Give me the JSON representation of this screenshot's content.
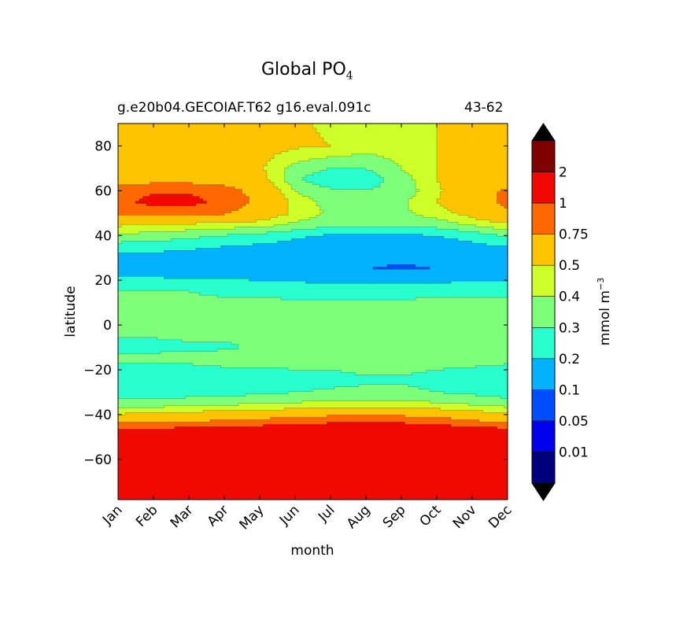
{
  "chart_data": {
    "type": "heatmap",
    "title": "Global PO",
    "title_subscript": "4",
    "subtitle_left": "g.e20b04.GECOIAF.T62 g16.eval.091c",
    "subtitle_right": "43-62",
    "xlabel": "month",
    "ylabel": "latitude",
    "colorbar_label": "mmol m",
    "colorbar_label_exponent": "−3",
    "x_categories": [
      "Jan",
      "Feb",
      "Mar",
      "Apr",
      "May",
      "Jun",
      "Jul",
      "Aug",
      "Sep",
      "Oct",
      "Nov",
      "Dec"
    ],
    "y_ticks": [
      "80",
      "60",
      "40",
      "20",
      "0",
      "−20",
      "−40",
      "−60"
    ],
    "y_tick_values": [
      80,
      60,
      40,
      20,
      0,
      -20,
      -40,
      -60
    ],
    "ylim": [
      -78,
      90
    ],
    "contour_levels": [
      0,
      0.01,
      0.05,
      0.1,
      0.2,
      0.3,
      0.4,
      0.5,
      0.75,
      1,
      2,
      3
    ],
    "colorbar_tick_labels": [
      "0.01",
      "0.05",
      "0.1",
      "0.2",
      "0.3",
      "0.4",
      "0.5",
      "0.75",
      "1",
      "2"
    ],
    "band_colors": [
      "#00007f",
      "#0000ed",
      "#004cff",
      "#00b2ff",
      "#29ffce",
      "#7dff7a",
      "#ceff29",
      "#ffc400",
      "#ff6800",
      "#f10800",
      "#7f0000"
    ],
    "extend_colors": {
      "low": "#000000",
      "high": "#000000"
    },
    "grid": false,
    "field_samples": {
      "latitude_deg": [
        -78,
        -70,
        -60,
        -50,
        -45,
        -42,
        -38,
        -34,
        -30,
        -25,
        -20,
        -15,
        -10,
        0,
        10,
        15,
        20,
        25,
        30,
        35,
        40,
        45,
        50,
        55,
        60,
        65,
        70,
        80,
        90
      ],
      "month_index_0_to_11": [
        0,
        1,
        2,
        3,
        4,
        5,
        6,
        7,
        8,
        9,
        10,
        11
      ],
      "values_mmol_m3": [
        [
          1.5,
          1.5,
          1.5,
          1.5,
          1.5,
          1.5,
          1.5,
          1.5,
          1.5,
          1.5,
          1.5,
          1.5
        ],
        [
          1.5,
          1.5,
          1.5,
          1.5,
          1.5,
          1.5,
          1.5,
          1.5,
          1.5,
          1.5,
          1.5,
          1.5
        ],
        [
          1.5,
          1.5,
          1.5,
          1.5,
          1.5,
          1.5,
          1.5,
          1.5,
          1.5,
          1.5,
          1.5,
          1.5
        ],
        [
          1.5,
          1.5,
          1.5,
          1.5,
          1.5,
          1.5,
          1.5,
          1.5,
          1.5,
          1.5,
          1.5,
          1.5
        ],
        [
          0.85,
          0.85,
          0.9,
          0.95,
          1.0,
          1.05,
          1.1,
          1.1,
          1.1,
          1.05,
          0.95,
          0.85
        ],
        [
          0.6,
          0.62,
          0.65,
          0.7,
          0.75,
          0.8,
          0.85,
          0.85,
          0.85,
          0.8,
          0.7,
          0.62
        ],
        [
          0.42,
          0.44,
          0.46,
          0.48,
          0.5,
          0.52,
          0.55,
          0.55,
          0.55,
          0.52,
          0.48,
          0.44
        ],
        [
          0.31,
          0.32,
          0.33,
          0.34,
          0.36,
          0.38,
          0.4,
          0.4,
          0.4,
          0.38,
          0.35,
          0.32
        ],
        [
          0.25,
          0.25,
          0.26,
          0.27,
          0.28,
          0.3,
          0.31,
          0.32,
          0.32,
          0.3,
          0.28,
          0.26
        ],
        [
          0.24,
          0.24,
          0.24,
          0.25,
          0.26,
          0.27,
          0.28,
          0.29,
          0.29,
          0.28,
          0.26,
          0.25
        ],
        [
          0.28,
          0.28,
          0.28,
          0.29,
          0.29,
          0.3,
          0.3,
          0.31,
          0.31,
          0.3,
          0.29,
          0.28
        ],
        [
          0.32,
          0.32,
          0.32,
          0.33,
          0.33,
          0.33,
          0.33,
          0.33,
          0.33,
          0.33,
          0.33,
          0.32
        ],
        [
          0.27,
          0.28,
          0.29,
          0.29,
          0.31,
          0.32,
          0.32,
          0.32,
          0.32,
          0.32,
          0.32,
          0.31
        ],
        [
          0.33,
          0.33,
          0.33,
          0.33,
          0.33,
          0.33,
          0.34,
          0.38,
          0.36,
          0.33,
          0.33,
          0.33
        ],
        [
          0.32,
          0.32,
          0.32,
          0.32,
          0.32,
          0.32,
          0.32,
          0.32,
          0.32,
          0.32,
          0.32,
          0.31
        ],
        [
          0.31,
          0.31,
          0.3,
          0.28,
          0.27,
          0.26,
          0.26,
          0.26,
          0.26,
          0.27,
          0.28,
          0.29
        ],
        [
          0.22,
          0.22,
          0.21,
          0.21,
          0.2,
          0.19,
          0.18,
          0.18,
          0.18,
          0.18,
          0.19,
          0.2
        ],
        [
          0.15,
          0.15,
          0.14,
          0.13,
          0.12,
          0.11,
          0.1,
          0.1,
          0.09,
          0.1,
          0.12,
          0.14
        ],
        [
          0.17,
          0.16,
          0.15,
          0.14,
          0.13,
          0.12,
          0.12,
          0.12,
          0.11,
          0.12,
          0.13,
          0.15
        ],
        [
          0.25,
          0.24,
          0.22,
          0.2,
          0.18,
          0.16,
          0.15,
          0.15,
          0.15,
          0.16,
          0.17,
          0.2
        ],
        [
          0.38,
          0.36,
          0.33,
          0.3,
          0.27,
          0.22,
          0.19,
          0.19,
          0.19,
          0.2,
          0.24,
          0.32
        ],
        [
          0.52,
          0.5,
          0.48,
          0.46,
          0.45,
          0.38,
          0.33,
          0.32,
          0.33,
          0.35,
          0.42,
          0.48
        ],
        [
          0.8,
          0.8,
          0.8,
          0.78,
          0.6,
          0.48,
          0.38,
          0.36,
          0.38,
          0.45,
          0.55,
          0.72
        ],
        [
          0.9,
          1.1,
          1.1,
          0.9,
          0.7,
          0.45,
          0.36,
          0.35,
          0.38,
          0.5,
          0.62,
          0.82
        ],
        [
          0.85,
          0.95,
          0.95,
          0.85,
          0.65,
          0.4,
          0.32,
          0.3,
          0.33,
          0.48,
          0.6,
          0.8
        ],
        [
          0.62,
          0.65,
          0.65,
          0.62,
          0.55,
          0.32,
          0.22,
          0.25,
          0.35,
          0.5,
          0.56,
          0.6
        ],
        [
          0.55,
          0.56,
          0.56,
          0.55,
          0.52,
          0.36,
          0.3,
          0.3,
          0.4,
          0.5,
          0.52,
          0.54
        ],
        [
          0.55,
          0.55,
          0.55,
          0.55,
          0.55,
          0.52,
          0.5,
          0.45,
          0.46,
          0.5,
          0.52,
          0.54
        ],
        [
          0.55,
          0.55,
          0.55,
          0.55,
          0.55,
          0.52,
          0.48,
          0.42,
          0.44,
          0.5,
          0.52,
          0.54
        ]
      ]
    }
  }
}
